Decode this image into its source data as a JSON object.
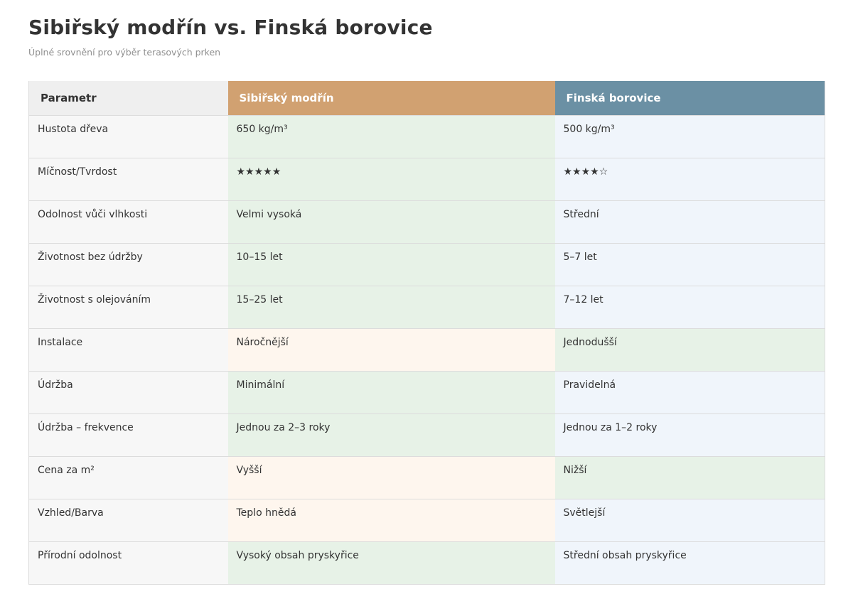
{
  "page": {
    "title": "Sibiřský modřín vs. Finská borovice",
    "subtitle": "Úplné srovnění pro výběr terasových prken"
  },
  "colors": {
    "header_param_bg": "#efefef",
    "header_larch_bg": "#d1a171",
    "header_pine_bg": "#6b90a4",
    "param_column_bg": "#f7f7f7",
    "tones": {
      "positive": "#e7f2e7",
      "neutral": "#f0f5fb",
      "negative": "#fef6ee"
    }
  },
  "table": {
    "columns": [
      {
        "label": "Parametr"
      },
      {
        "label": "Sibiřský modřín"
      },
      {
        "label": "Finská borovice"
      }
    ],
    "rows": [
      {
        "param": "Hustota dřeva",
        "larch": "650 kg/m³",
        "larch_tone": "positive",
        "pine": "500 kg/m³",
        "pine_tone": "neutral"
      },
      {
        "param": "Míčnost/Tvrdost",
        "larch": "★★★★★",
        "larch_tone": "positive",
        "pine": "★★★★☆",
        "pine_tone": "neutral"
      },
      {
        "param": "Odolnost vůči vlhkosti",
        "larch": "Velmi vysoká",
        "larch_tone": "positive",
        "pine": "Střední",
        "pine_tone": "neutral"
      },
      {
        "param": "Životnost bez údržby",
        "larch": "10–15 let",
        "larch_tone": "positive",
        "pine": "5–7 let",
        "pine_tone": "neutral"
      },
      {
        "param": "Životnost s olejováním",
        "larch": "15–25 let",
        "larch_tone": "positive",
        "pine": "7–12 let",
        "pine_tone": "neutral"
      },
      {
        "param": "Instalace",
        "larch": "Náročnější",
        "larch_tone": "negative",
        "pine": "Jednodušší",
        "pine_tone": "positive"
      },
      {
        "param": "Údržba",
        "larch": "Minimální",
        "larch_tone": "positive",
        "pine": "Pravidelná",
        "pine_tone": "neutral"
      },
      {
        "param": "Údržba – frekvence",
        "larch": "Jednou za 2–3 roky",
        "larch_tone": "positive",
        "pine": "Jednou za 1–2 roky",
        "pine_tone": "neutral"
      },
      {
        "param": "Cena za m²",
        "larch": "Vyšší",
        "larch_tone": "negative",
        "pine": "Nižší",
        "pine_tone": "positive"
      },
      {
        "param": "Vzhled/Barva",
        "larch": "Teplo hnědá",
        "larch_tone": "negative",
        "pine": "Světlejší",
        "pine_tone": "neutral"
      },
      {
        "param": "Přírodní odolnost",
        "larch": "Vysoký obsah pryskyřice",
        "larch_tone": "positive",
        "pine": "Střední obsah pryskyřice",
        "pine_tone": "neutral"
      }
    ]
  }
}
